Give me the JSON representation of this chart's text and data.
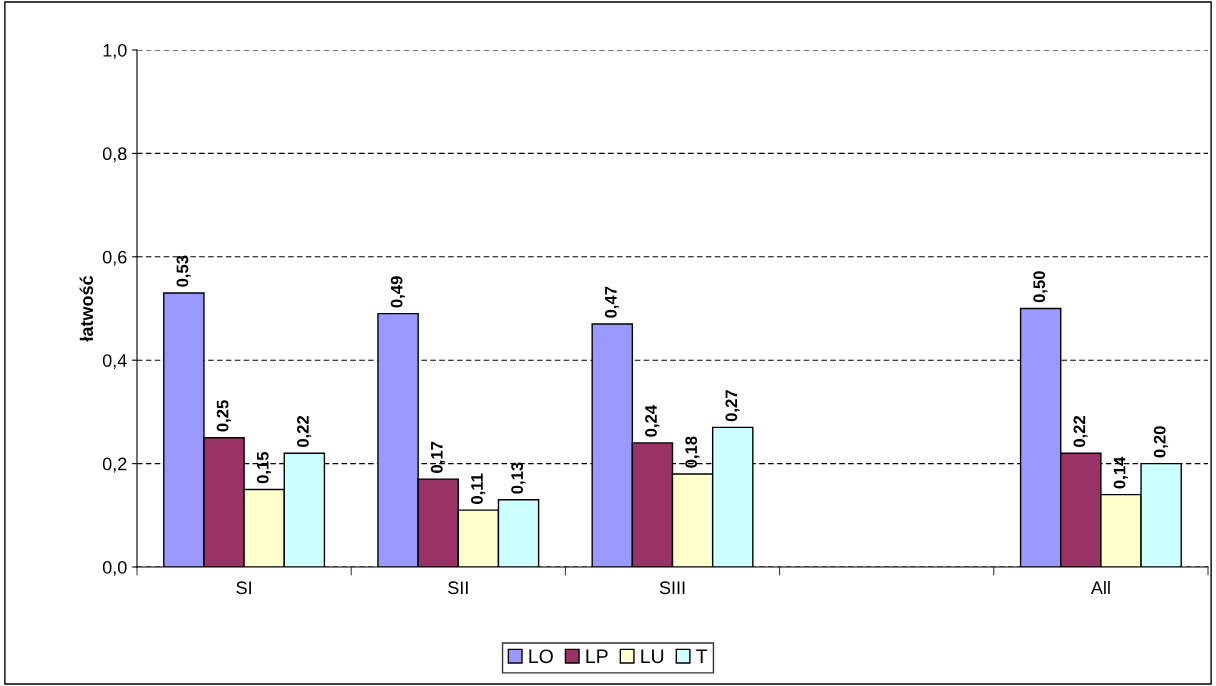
{
  "chart_data": {
    "type": "bar",
    "ylabel": "łatwość",
    "categories": [
      "SI",
      "SII",
      "SIII",
      null,
      "All"
    ],
    "series": [
      {
        "name": "LO",
        "color": "#9999ff",
        "values": [
          0.53,
          0.49,
          0.47,
          null,
          0.5
        ],
        "value_labels": [
          "0,53",
          "0,49",
          "0,47",
          null,
          "0,50"
        ]
      },
      {
        "name": "LP",
        "color": "#993366",
        "values": [
          0.25,
          0.17,
          0.24,
          null,
          0.22
        ],
        "value_labels": [
          "0,25",
          "0,17",
          "0,24",
          null,
          "0,22"
        ]
      },
      {
        "name": "LU",
        "color": "#ffffcc",
        "values": [
          0.15,
          0.11,
          0.18,
          null,
          0.14
        ],
        "value_labels": [
          "0,15",
          "0,11",
          "0,18",
          null,
          "0,14"
        ]
      },
      {
        "name": "T",
        "color": "#ccffff",
        "values": [
          0.22,
          0.13,
          0.27,
          null,
          0.2
        ],
        "value_labels": [
          "0,22",
          "0,13",
          "0,27",
          null,
          "0,20"
        ]
      }
    ],
    "ylim": [
      0,
      1.0
    ],
    "yticks": [
      {
        "value": 0,
        "label": "0,0"
      },
      {
        "value": 0.2,
        "label": "0,2"
      },
      {
        "value": 0.4,
        "label": "0,4"
      },
      {
        "value": 0.6,
        "label": "0,6"
      },
      {
        "value": 0.8,
        "label": "0,8"
      },
      {
        "value": 1.0,
        "label": "1,0"
      }
    ],
    "grid": "y",
    "legend": "bottom"
  }
}
